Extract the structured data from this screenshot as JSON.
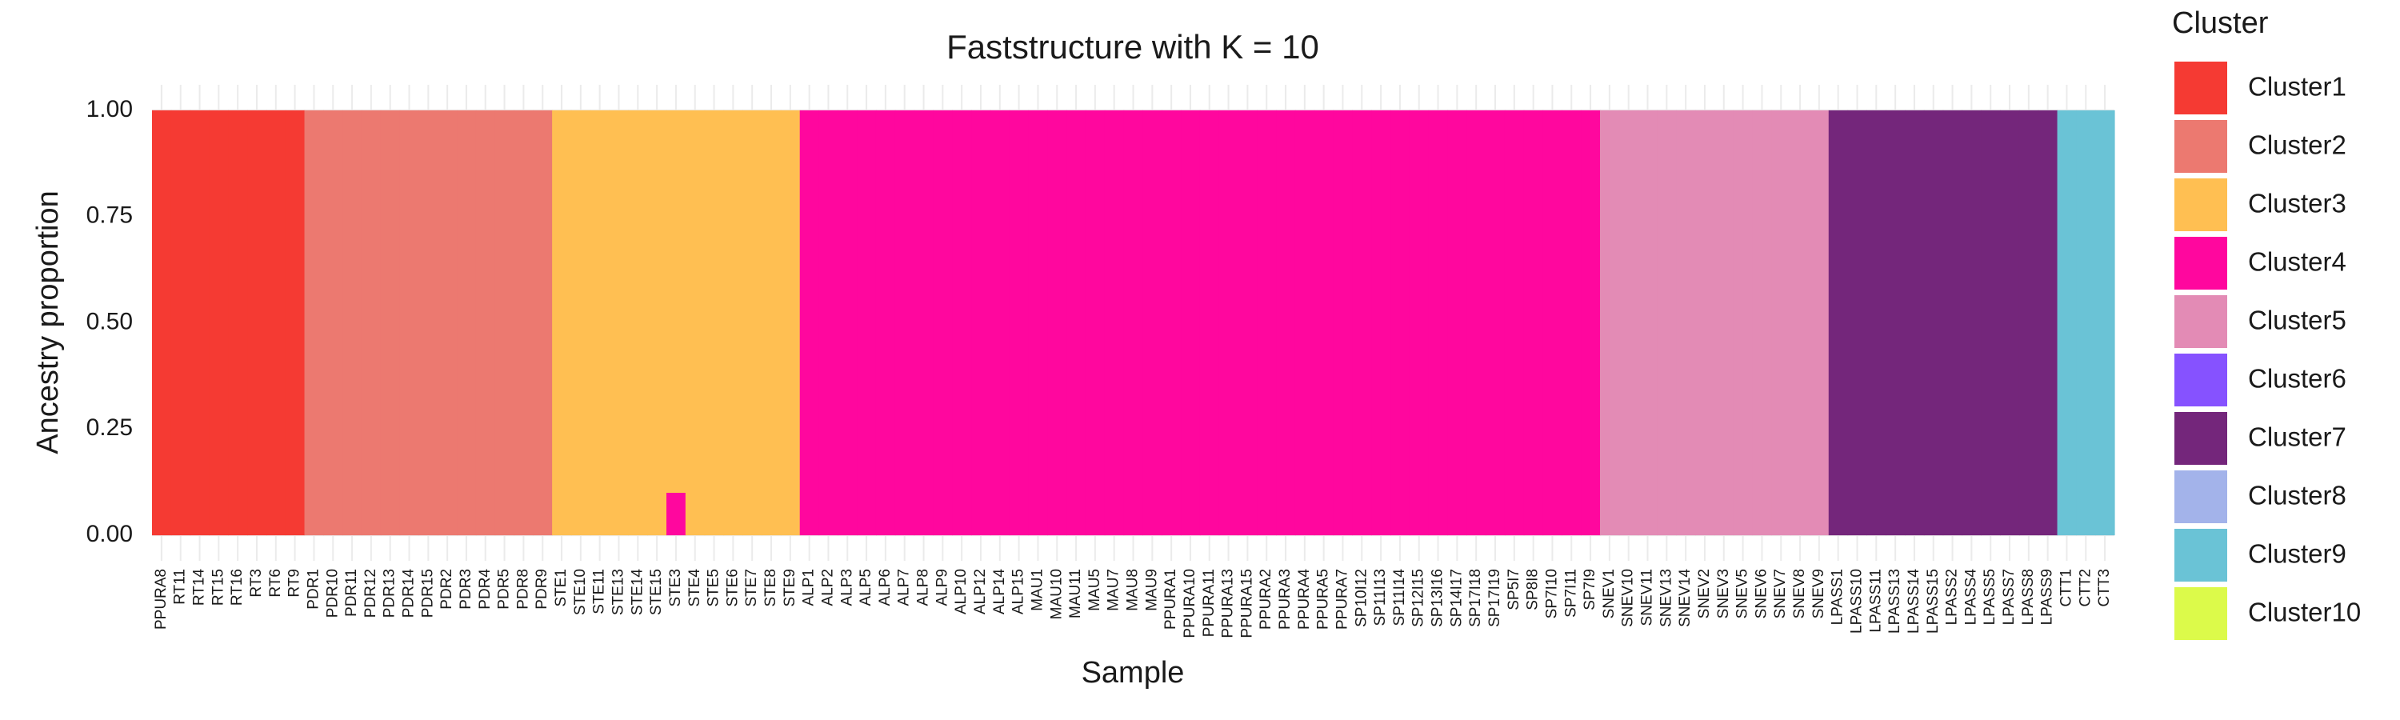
{
  "chart_data": {
    "type": "stacked_bar",
    "title": "Faststructure with K = 10",
    "x_label": "Sample",
    "y_label": "Ancestry proportion",
    "legend_title": "Cluster",
    "categories": [
      "PPURA8",
      "RT11",
      "RT14",
      "RT15",
      "RT16",
      "RT3",
      "RT6",
      "RT9",
      "PDR1",
      "PDR10",
      "PDR11",
      "PDR12",
      "PDR13",
      "PDR14",
      "PDR15",
      "PDR2",
      "PDR3",
      "PDR4",
      "PDR5",
      "PDR8",
      "PDR9",
      "STE1",
      "STE10",
      "STE11",
      "STE13",
      "STE14",
      "STE15",
      "STE3",
      "STE4",
      "STE5",
      "STE6",
      "STE7",
      "STE8",
      "STE9",
      "ALP1",
      "ALP2",
      "ALP3",
      "ALP5",
      "ALP6",
      "ALP7",
      "ALP8",
      "ALP9",
      "ALP10",
      "ALP12",
      "ALP14",
      "ALP15",
      "MAU1",
      "MAU10",
      "MAU11",
      "MAU5",
      "MAU7",
      "MAU8",
      "MAU9",
      "PPURA1",
      "PPURA10",
      "PPURA11",
      "PPURA13",
      "PPURA15",
      "PPURA2",
      "PPURA3",
      "PPURA4",
      "PPURA5",
      "PPURA7",
      "SP10I12",
      "SP11I13",
      "SP11I14",
      "SP12I15",
      "SP13I16",
      "SP14I17",
      "SP17I18",
      "SP17I19",
      "SP5I7",
      "SP8I8",
      "SP7I10",
      "SP7I11",
      "SP7I9",
      "SNEV1",
      "SNEV10",
      "SNEV11",
      "SNEV13",
      "SNEV14",
      "SNEV2",
      "SNEV3",
      "SNEV5",
      "SNEV6",
      "SNEV7",
      "SNEV8",
      "SNEV9",
      "LPASS1",
      "LPASS10",
      "LPASS11",
      "LPASS13",
      "LPASS14",
      "LPASS15",
      "LPASS2",
      "LPASS4",
      "LPASS5",
      "LPASS7",
      "LPASS8",
      "LPASS9",
      "CTT1",
      "CTT2",
      "CTT3"
    ],
    "series": [
      {
        "name": "Cluster1",
        "color": "#F53A33",
        "values": [
          1,
          1,
          1,
          1,
          1,
          1,
          1,
          1,
          0,
          0,
          0,
          0,
          0,
          0,
          0,
          0,
          0,
          0,
          0,
          0,
          0,
          0,
          0,
          0,
          0,
          0,
          0,
          0,
          0,
          0,
          0,
          0,
          0,
          0,
          0,
          0,
          0,
          0,
          0,
          0,
          0,
          0,
          0,
          0,
          0,
          0,
          0,
          0,
          0,
          0,
          0,
          0,
          0,
          0,
          0,
          0,
          0,
          0,
          0,
          0,
          0,
          0,
          0,
          0,
          0,
          0,
          0,
          0,
          0,
          0,
          0,
          0,
          0,
          0,
          0,
          0,
          0,
          0,
          0,
          0,
          0,
          0,
          0,
          0,
          0,
          0,
          0,
          0,
          0,
          0,
          0,
          0,
          0,
          0,
          0,
          0,
          0,
          0,
          0,
          0,
          0,
          0,
          0
        ]
      },
      {
        "name": "Cluster2",
        "color": "#EC7970",
        "values": [
          0,
          0,
          0,
          0,
          0,
          0,
          0,
          0,
          1,
          1,
          1,
          1,
          1,
          1,
          1,
          1,
          1,
          1,
          1,
          1,
          1,
          0,
          0,
          0,
          0,
          0,
          0,
          0,
          0,
          0,
          0,
          0,
          0,
          0,
          0,
          0,
          0,
          0,
          0,
          0,
          0,
          0,
          0,
          0,
          0,
          0,
          0,
          0,
          0,
          0,
          0,
          0,
          0,
          0,
          0,
          0,
          0,
          0,
          0,
          0,
          0,
          0,
          0,
          0,
          0,
          0,
          0,
          0,
          0,
          0,
          0,
          0,
          0,
          0,
          0,
          0,
          0,
          0,
          0,
          0,
          0,
          0,
          0,
          0,
          0,
          0,
          0,
          0,
          0,
          0,
          0,
          0,
          0,
          0,
          0,
          0,
          0,
          0,
          0,
          0,
          0,
          0,
          0
        ]
      },
      {
        "name": "Cluster3",
        "color": "#FFBF52",
        "values": [
          0,
          0,
          0,
          0,
          0,
          0,
          0,
          0,
          0,
          0,
          0,
          0,
          0,
          0,
          0,
          0,
          0,
          0,
          0,
          0,
          0,
          1,
          1,
          1,
          1,
          1,
          1,
          0.9,
          1,
          1,
          1,
          1,
          1,
          1,
          0,
          0,
          0,
          0,
          0,
          0,
          0,
          0,
          0,
          0,
          0,
          0,
          0,
          0,
          0,
          0,
          0,
          0,
          0,
          0,
          0,
          0,
          0,
          0,
          0,
          0,
          0,
          0,
          0,
          0,
          0,
          0,
          0,
          0,
          0,
          0,
          0,
          0,
          0,
          0,
          0,
          0,
          0,
          0,
          0,
          0,
          0,
          0,
          0,
          0,
          0,
          0,
          0,
          0,
          0,
          0,
          0,
          0,
          0,
          0,
          0,
          0,
          0,
          0,
          0,
          0,
          0,
          0,
          0
        ]
      },
      {
        "name": "Cluster4",
        "color": "#FF079E",
        "values": [
          0,
          0,
          0,
          0,
          0,
          0,
          0,
          0,
          0,
          0,
          0,
          0,
          0,
          0,
          0,
          0,
          0,
          0,
          0,
          0,
          0,
          0,
          0,
          0,
          0,
          0,
          0,
          0.1,
          0,
          0,
          0,
          0,
          0,
          0,
          1,
          1,
          1,
          1,
          1,
          1,
          1,
          1,
          1,
          1,
          1,
          1,
          1,
          1,
          1,
          1,
          1,
          1,
          1,
          1,
          1,
          1,
          1,
          1,
          1,
          1,
          1,
          1,
          1,
          1,
          1,
          1,
          1,
          1,
          1,
          1,
          1,
          1,
          1,
          1,
          1,
          1,
          0,
          0,
          0,
          0,
          0,
          0,
          0,
          0,
          0,
          0,
          0,
          0,
          0,
          0,
          0,
          0,
          0,
          0,
          0,
          0,
          0,
          0,
          0,
          0,
          0,
          0,
          0
        ]
      },
      {
        "name": "Cluster5",
        "color": "#E38BB5",
        "values": [
          0,
          0,
          0,
          0,
          0,
          0,
          0,
          0,
          0,
          0,
          0,
          0,
          0,
          0,
          0,
          0,
          0,
          0,
          0,
          0,
          0,
          0,
          0,
          0,
          0,
          0,
          0,
          0,
          0,
          0,
          0,
          0,
          0,
          0,
          0,
          0,
          0,
          0,
          0,
          0,
          0,
          0,
          0,
          0,
          0,
          0,
          0,
          0,
          0,
          0,
          0,
          0,
          0,
          0,
          0,
          0,
          0,
          0,
          0,
          0,
          0,
          0,
          0,
          0,
          0,
          0,
          0,
          0,
          0,
          0,
          0,
          0,
          0,
          0,
          0,
          0,
          1,
          1,
          1,
          1,
          1,
          1,
          1,
          1,
          1,
          1,
          1,
          1,
          0,
          0,
          0,
          0,
          0,
          0,
          0,
          0,
          0,
          0,
          0,
          0,
          0,
          0,
          0
        ]
      },
      {
        "name": "Cluster6",
        "color": "#8652FF",
        "values": [
          0,
          0,
          0,
          0,
          0,
          0,
          0,
          0,
          0,
          0,
          0,
          0,
          0,
          0,
          0,
          0,
          0,
          0,
          0,
          0,
          0,
          0,
          0,
          0,
          0,
          0,
          0,
          0,
          0,
          0,
          0,
          0,
          0,
          0,
          0,
          0,
          0,
          0,
          0,
          0,
          0,
          0,
          0,
          0,
          0,
          0,
          0,
          0,
          0,
          0,
          0,
          0,
          0,
          0,
          0,
          0,
          0,
          0,
          0,
          0,
          0,
          0,
          0,
          0,
          0,
          0,
          0,
          0,
          0,
          0,
          0,
          0,
          0,
          0,
          0,
          0,
          0,
          0,
          0,
          0,
          0,
          0,
          0,
          0,
          0,
          0,
          0,
          0,
          0,
          0,
          0,
          0,
          0,
          0,
          0,
          0,
          0,
          0,
          0,
          0,
          0,
          0,
          0
        ]
      },
      {
        "name": "Cluster7",
        "color": "#74267B",
        "values": [
          0,
          0,
          0,
          0,
          0,
          0,
          0,
          0,
          0,
          0,
          0,
          0,
          0,
          0,
          0,
          0,
          0,
          0,
          0,
          0,
          0,
          0,
          0,
          0,
          0,
          0,
          0,
          0,
          0,
          0,
          0,
          0,
          0,
          0,
          0,
          0,
          0,
          0,
          0,
          0,
          0,
          0,
          0,
          0,
          0,
          0,
          0,
          0,
          0,
          0,
          0,
          0,
          0,
          0,
          0,
          0,
          0,
          0,
          0,
          0,
          0,
          0,
          0,
          0,
          0,
          0,
          0,
          0,
          0,
          0,
          0,
          0,
          0,
          0,
          0,
          0,
          0,
          0,
          0,
          0,
          0,
          0,
          0,
          0,
          0,
          0,
          0,
          0,
          1,
          1,
          1,
          1,
          1,
          1,
          1,
          1,
          1,
          1,
          1,
          1,
          0,
          0,
          0
        ]
      },
      {
        "name": "Cluster8",
        "color": "#A3B3EA",
        "values": [
          0,
          0,
          0,
          0,
          0,
          0,
          0,
          0,
          0,
          0,
          0,
          0,
          0,
          0,
          0,
          0,
          0,
          0,
          0,
          0,
          0,
          0,
          0,
          0,
          0,
          0,
          0,
          0,
          0,
          0,
          0,
          0,
          0,
          0,
          0,
          0,
          0,
          0,
          0,
          0,
          0,
          0,
          0,
          0,
          0,
          0,
          0,
          0,
          0,
          0,
          0,
          0,
          0,
          0,
          0,
          0,
          0,
          0,
          0,
          0,
          0,
          0,
          0,
          0,
          0,
          0,
          0,
          0,
          0,
          0,
          0,
          0,
          0,
          0,
          0,
          0,
          0,
          0,
          0,
          0,
          0,
          0,
          0,
          0,
          0,
          0,
          0,
          0,
          0,
          0,
          0,
          0,
          0,
          0,
          0,
          0,
          0,
          0,
          0,
          0,
          0,
          0,
          0
        ]
      },
      {
        "name": "Cluster9",
        "color": "#6AC3D6",
        "values": [
          0,
          0,
          0,
          0,
          0,
          0,
          0,
          0,
          0,
          0,
          0,
          0,
          0,
          0,
          0,
          0,
          0,
          0,
          0,
          0,
          0,
          0,
          0,
          0,
          0,
          0,
          0,
          0,
          0,
          0,
          0,
          0,
          0,
          0,
          0,
          0,
          0,
          0,
          0,
          0,
          0,
          0,
          0,
          0,
          0,
          0,
          0,
          0,
          0,
          0,
          0,
          0,
          0,
          0,
          0,
          0,
          0,
          0,
          0,
          0,
          0,
          0,
          0,
          0,
          0,
          0,
          0,
          0,
          0,
          0,
          0,
          0,
          0,
          0,
          0,
          0,
          0,
          0,
          0,
          0,
          0,
          0,
          0,
          0,
          0,
          0,
          0,
          0,
          0,
          0,
          0,
          0,
          0,
          0,
          0,
          0,
          0,
          0,
          0,
          0,
          1,
          1,
          1
        ]
      },
      {
        "name": "Cluster10",
        "color": "#DCFA4A",
        "values": [
          0,
          0,
          0,
          0,
          0,
          0,
          0,
          0,
          0,
          0,
          0,
          0,
          0,
          0,
          0,
          0,
          0,
          0,
          0,
          0,
          0,
          0,
          0,
          0,
          0,
          0,
          0,
          0,
          0,
          0,
          0,
          0,
          0,
          0,
          0,
          0,
          0,
          0,
          0,
          0,
          0,
          0,
          0,
          0,
          0,
          0,
          0,
          0,
          0,
          0,
          0,
          0,
          0,
          0,
          0,
          0,
          0,
          0,
          0,
          0,
          0,
          0,
          0,
          0,
          0,
          0,
          0,
          0,
          0,
          0,
          0,
          0,
          0,
          0,
          0,
          0,
          0,
          0,
          0,
          0,
          0,
          0,
          0,
          0,
          0,
          0,
          0,
          0,
          0,
          0,
          0,
          0,
          0,
          0,
          0,
          0,
          0,
          0,
          0,
          0,
          0,
          0,
          0
        ]
      }
    ],
    "ylim": [
      -0.06,
      1.06
    ],
    "yticks": [
      {
        "value": 0,
        "label": "0.00"
      },
      {
        "value": 0.25,
        "label": "0.25"
      },
      {
        "value": 0.5,
        "label": "0.50"
      },
      {
        "value": 0.75,
        "label": "0.75"
      },
      {
        "value": 1,
        "label": "1.00"
      }
    ],
    "grid": true,
    "legend_position": "right"
  }
}
